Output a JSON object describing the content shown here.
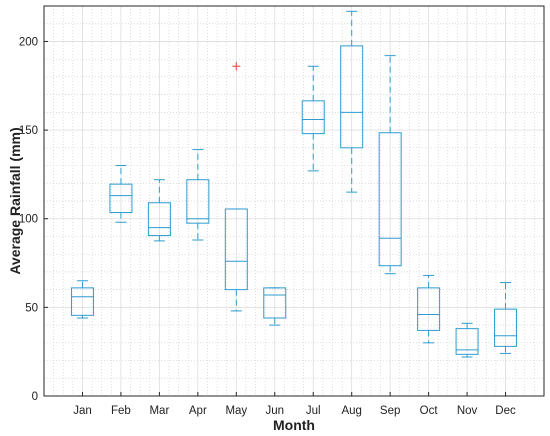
{
  "chart_data": {
    "type": "boxplot",
    "title": "",
    "xlabel": "Month",
    "ylabel": "Average Rainfall (mm)",
    "ylim": [
      0,
      220
    ],
    "yticks": [
      0,
      50,
      100,
      150,
      200
    ],
    "grid": "major-and-minor, dotted",
    "box_color": "#2e9ccf",
    "median_color": "#2e9ccf",
    "outlier_color": "#e8504a",
    "categories": [
      "Jan",
      "Feb",
      "Mar",
      "Apr",
      "May",
      "Jun",
      "Jul",
      "Aug",
      "Sep",
      "Oct",
      "Nov",
      "Dec"
    ],
    "boxes": [
      {
        "label": "Jan",
        "whisker_low": 44,
        "q1": 45.5,
        "median": 56,
        "q3": 61,
        "whisker_high": 65,
        "outliers": []
      },
      {
        "label": "Feb",
        "whisker_low": 98,
        "q1": 103.5,
        "median": 113,
        "q3": 119.5,
        "whisker_high": 130,
        "outliers": []
      },
      {
        "label": "Mar",
        "whisker_low": 87.5,
        "q1": 90.5,
        "median": 95,
        "q3": 109,
        "whisker_high": 122,
        "outliers": []
      },
      {
        "label": "Apr",
        "whisker_low": 88,
        "q1": 97.5,
        "median": 100,
        "q3": 122,
        "whisker_high": 139,
        "outliers": []
      },
      {
        "label": "May",
        "whisker_low": 48,
        "q1": 60,
        "median": 76,
        "q3": 105.5,
        "whisker_high": 105.5,
        "outliers": [
          186
        ]
      },
      {
        "label": "Jun",
        "whisker_low": 40,
        "q1": 44,
        "median": 57,
        "q3": 61,
        "whisker_high": 61,
        "outliers": []
      },
      {
        "label": "Jul",
        "whisker_low": 127,
        "q1": 148,
        "median": 156,
        "q3": 166.5,
        "whisker_high": 186,
        "outliers": []
      },
      {
        "label": "Aug",
        "whisker_low": 115,
        "q1": 140,
        "median": 160,
        "q3": 197.5,
        "whisker_high": 217,
        "outliers": []
      },
      {
        "label": "Sep",
        "whisker_low": 69,
        "q1": 73.5,
        "median": 89,
        "q3": 148.5,
        "whisker_high": 192,
        "outliers": []
      },
      {
        "label": "Oct",
        "whisker_low": 30,
        "q1": 37,
        "median": 46,
        "q3": 61,
        "whisker_high": 68,
        "outliers": []
      },
      {
        "label": "Nov",
        "whisker_low": 22,
        "q1": 23.5,
        "median": 26,
        "q3": 38,
        "whisker_high": 41,
        "outliers": []
      },
      {
        "label": "Dec",
        "whisker_low": 24,
        "q1": 28,
        "median": 34,
        "q3": 49,
        "whisker_high": 64,
        "outliers": []
      }
    ]
  }
}
